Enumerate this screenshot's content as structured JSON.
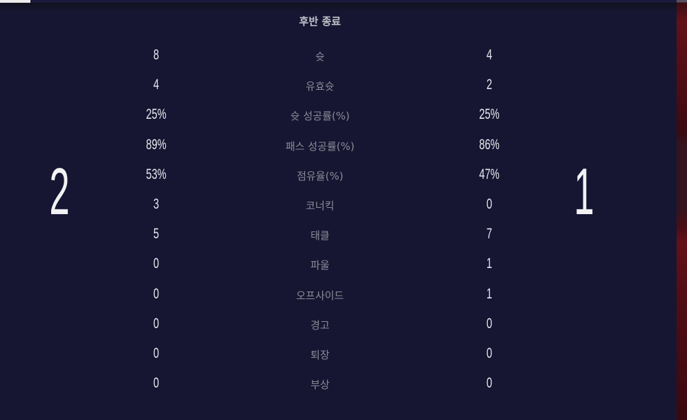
{
  "status": "후반 종료",
  "score": {
    "home": "2",
    "away": "1"
  },
  "stats": [
    {
      "label": "슛",
      "home": "8",
      "away": "4"
    },
    {
      "label": "유효슛",
      "home": "4",
      "away": "2"
    },
    {
      "label": "슛 성공률(%)",
      "home": "25%",
      "away": "25%"
    },
    {
      "label": "패스 성공률(%)",
      "home": "89%",
      "away": "86%"
    },
    {
      "label": "점유율(%)",
      "home": "53%",
      "away": "47%"
    },
    {
      "label": "코너킥",
      "home": "3",
      "away": "0"
    },
    {
      "label": "태클",
      "home": "5",
      "away": "7"
    },
    {
      "label": "파울",
      "home": "0",
      "away": "1"
    },
    {
      "label": "오프사이드",
      "home": "0",
      "away": "1"
    },
    {
      "label": "경고",
      "home": "0",
      "away": "0"
    },
    {
      "label": "퇴장",
      "home": "0",
      "away": "0"
    },
    {
      "label": "부상",
      "home": "0",
      "away": "0"
    }
  ],
  "colors": {
    "background": "#161633",
    "accent_strip": "#621018"
  }
}
